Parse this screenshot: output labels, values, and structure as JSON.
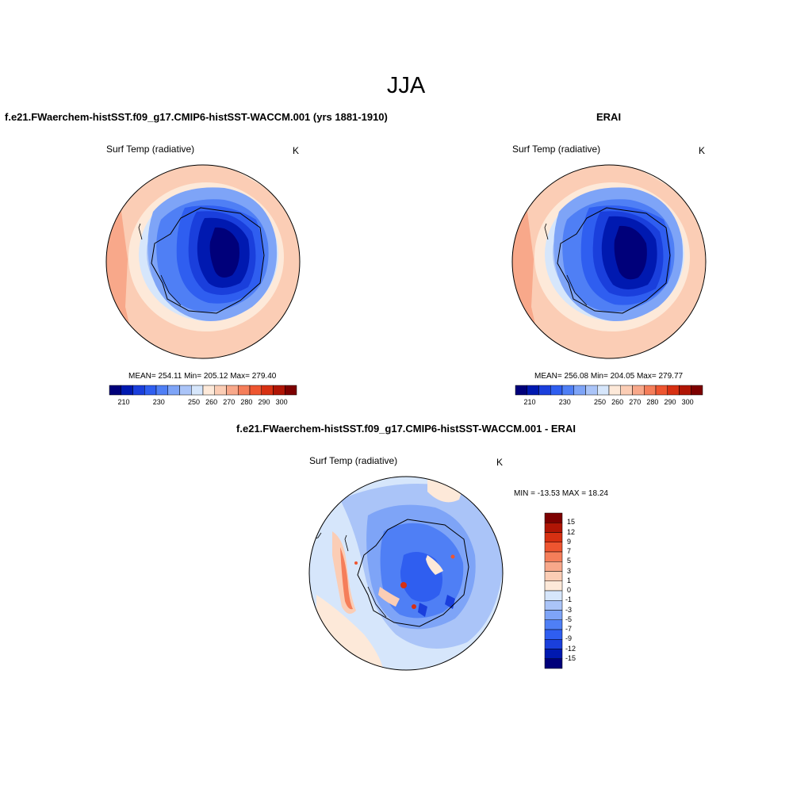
{
  "figure": {
    "title": "JJA"
  },
  "panels": {
    "model": {
      "title": "f.e21.FWaerchem-histSST.f09_g17.CMIP6-histSST-WACCM.001 (yrs 1881-1910)",
      "variable": "Surf Temp (radiative)",
      "units": "K",
      "stats": "MEAN= 254.11  Min= 205.12  Max= 279.40"
    },
    "obs": {
      "title": "ERAI",
      "variable": "Surf Temp (radiative)",
      "units": "K",
      "stats": "MEAN= 256.08  Min= 204.05  Max= 279.77"
    },
    "diff": {
      "title": "f.e21.FWaerchem-histSST.f09_g17.CMIP6-histSST-WACCM.001 - ERAI",
      "variable": "Surf Temp (radiative)",
      "units": "K",
      "stats": "MIN = -13.53 MAX =  18.24"
    }
  },
  "colorbars": {
    "absolute": {
      "ticks": [
        "210",
        "230",
        "250",
        "260",
        "270",
        "280",
        "290",
        "300"
      ],
      "colors": [
        "#00007a",
        "#0019b0",
        "#1a3fdc",
        "#2f5ef0",
        "#4f7ff5",
        "#7ea4f7",
        "#aac4f8",
        "#d6e6fb",
        "#fde9d9",
        "#fbcdb5",
        "#f8a88a",
        "#f57e5a",
        "#ee5530",
        "#d73012",
        "#b01505",
        "#7d0000"
      ]
    },
    "difference": {
      "labels": [
        "15",
        "12",
        "9",
        "7",
        "5",
        "3",
        "1",
        "0",
        "-1",
        "-3",
        "-5",
        "-7",
        "-9",
        "-12",
        "-15"
      ],
      "colors": [
        "#7d0000",
        "#b01505",
        "#d73012",
        "#ee5530",
        "#f57e5a",
        "#f8a88a",
        "#fbcdb5",
        "#fde9d9",
        "#d6e6fb",
        "#aac4f8",
        "#7ea4f7",
        "#4f7ff5",
        "#2f5ef0",
        "#1a3fdc",
        "#0019b0",
        "#00007a"
      ]
    }
  }
}
